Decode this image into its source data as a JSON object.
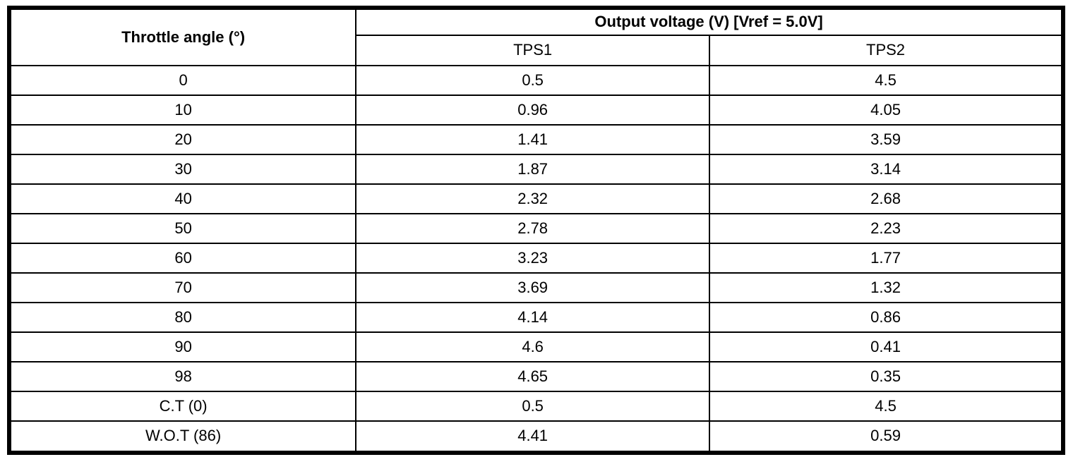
{
  "table": {
    "col1_header": "Throttle angle (°)",
    "group_header": "Output voltage (V) [Vref = 5.0V]",
    "sub_headers": [
      "TPS1",
      "TPS2"
    ],
    "rows": [
      {
        "angle": "0",
        "tps1": "0.5",
        "tps2": "4.5"
      },
      {
        "angle": "10",
        "tps1": "0.96",
        "tps2": "4.05"
      },
      {
        "angle": "20",
        "tps1": "1.41",
        "tps2": "3.59"
      },
      {
        "angle": "30",
        "tps1": "1.87",
        "tps2": "3.14"
      },
      {
        "angle": "40",
        "tps1": "2.32",
        "tps2": "2.68"
      },
      {
        "angle": "50",
        "tps1": "2.78",
        "tps2": "2.23"
      },
      {
        "angle": "60",
        "tps1": "3.23",
        "tps2": "1.77"
      },
      {
        "angle": "70",
        "tps1": "3.69",
        "tps2": "1.32"
      },
      {
        "angle": "80",
        "tps1": "4.14",
        "tps2": "0.86"
      },
      {
        "angle": "90",
        "tps1": "4.6",
        "tps2": "0.41"
      },
      {
        "angle": "98",
        "tps1": "4.65",
        "tps2": "0.35"
      },
      {
        "angle": "C.T (0)",
        "tps1": "0.5",
        "tps2": "4.5"
      },
      {
        "angle": "W.O.T (86)",
        "tps1": "4.41",
        "tps2": "0.59"
      }
    ]
  },
  "chart_data": {
    "type": "table",
    "title": "Output voltage (V) [Vref = 5.0V]",
    "columns": [
      "Throttle angle (°)",
      "TPS1",
      "TPS2"
    ],
    "categories": [
      "0",
      "10",
      "20",
      "30",
      "40",
      "50",
      "60",
      "70",
      "80",
      "90",
      "98",
      "C.T (0)",
      "W.O.T (86)"
    ],
    "series": [
      {
        "name": "TPS1",
        "values": [
          0.5,
          0.96,
          1.41,
          1.87,
          2.32,
          2.78,
          3.23,
          3.69,
          4.14,
          4.6,
          4.65,
          0.5,
          4.41
        ]
      },
      {
        "name": "TPS2",
        "values": [
          4.5,
          4.05,
          3.59,
          3.14,
          2.68,
          2.23,
          1.77,
          1.32,
          0.86,
          0.41,
          0.35,
          4.5,
          0.59
        ]
      }
    ],
    "xlabel": "Throttle angle (°)",
    "ylabel": "Output voltage (V)",
    "vref": "5.0V"
  },
  "colors": {
    "border": "#000000",
    "background": "#ffffff",
    "text": "#000000"
  }
}
